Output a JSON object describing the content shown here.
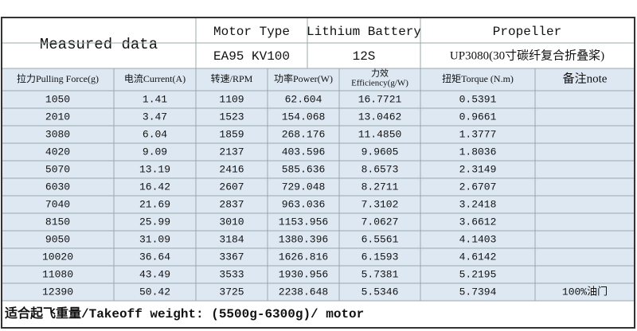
{
  "header": {
    "title": "Measured data",
    "motor_type_label": "Motor Type",
    "motor_type": "EA95 KV100",
    "battery_label": "Lithium Battery",
    "battery": "12S",
    "propeller_label": "Propeller",
    "propeller": "UP3080(30寸碳纤复合折叠桨)"
  },
  "table": {
    "columns": [
      "拉力Pulling Force(g)",
      "电流Current(A)",
      "转速/RPM",
      "功率Power(W)",
      [
        "力效",
        "Efficiency(g/W)"
      ],
      "扭矩Torque (N.m)",
      "备注note"
    ],
    "rows": [
      [
        "1050",
        "1.41",
        "1109",
        "62.604",
        "16.7721",
        "0.5391"
      ],
      [
        "2010",
        "3.47",
        "1523",
        "154.068",
        "13.0462",
        "0.9661"
      ],
      [
        "3080",
        "6.04",
        "1859",
        "268.176",
        "11.4850",
        "1.3777"
      ],
      [
        "4020",
        "9.09",
        "2137",
        "403.596",
        "9.9605",
        "1.8036"
      ],
      [
        "5070",
        "13.19",
        "2416",
        "585.636",
        "8.6573",
        "2.3149"
      ],
      [
        "6030",
        "16.42",
        "2607",
        "729.048",
        "8.2711",
        "2.6707"
      ],
      [
        "7040",
        "21.69",
        "2837",
        "963.036",
        "7.3102",
        "3.2418"
      ],
      [
        "8150",
        "25.99",
        "3010",
        "1153.956",
        "7.0627",
        "3.6612"
      ],
      [
        "9050",
        "31.09",
        "3184",
        "1380.396",
        "6.5561",
        "4.1403"
      ],
      [
        "10020",
        "36.64",
        "3367",
        "1626.816",
        "6.1593",
        "4.6142"
      ],
      [
        "11080",
        "43.49",
        "3533",
        "1930.956",
        "5.7381",
        "5.2195"
      ],
      [
        "12390",
        "50.42",
        "3725",
        "2238.648",
        "5.5346",
        "5.7394",
        "100%油门"
      ]
    ]
  },
  "footer": "适合起飞重量/Takeoff weight: (5500g-6300g)/ motor"
}
